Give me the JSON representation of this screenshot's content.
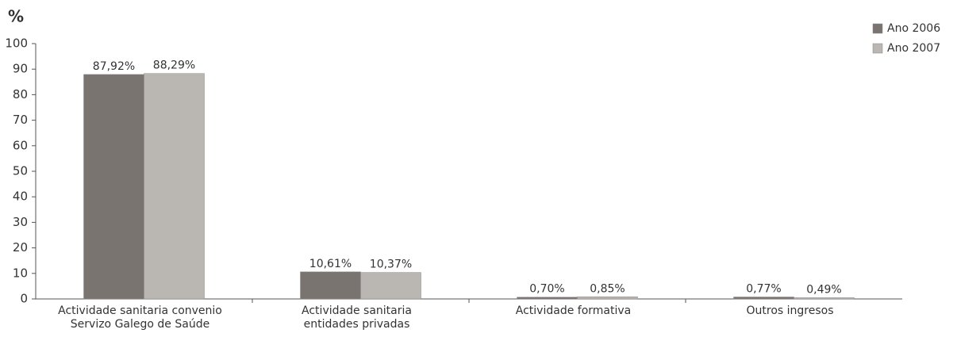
{
  "chart_data": {
    "type": "bar",
    "y_label": "%",
    "categories": [
      [
        "Actividade sanitaria convenio",
        "Servizo Galego de Saúde"
      ],
      [
        "Actividade sanitaria",
        "entidades privadas"
      ],
      [
        "Actividade formativa"
      ],
      [
        "Outros ingresos"
      ]
    ],
    "series": [
      {
        "name": "Ano 2006",
        "color": "#7a7470",
        "values": [
          87.92,
          10.61,
          0.7,
          0.77
        ],
        "value_labels": [
          "87,92%",
          "10,61%",
          "0,70%",
          "0,77%"
        ]
      },
      {
        "name": "Ano 2007",
        "color": "#bab6b2",
        "values": [
          88.29,
          10.37,
          0.85,
          0.49
        ],
        "value_labels": [
          "88,29%",
          "10,37%",
          "0,85%",
          "0,49%"
        ]
      }
    ],
    "ylim": [
      0,
      100
    ],
    "yticks": [
      0,
      10,
      20,
      30,
      40,
      50,
      60,
      70,
      80,
      90,
      100
    ],
    "legend": "upper right"
  }
}
